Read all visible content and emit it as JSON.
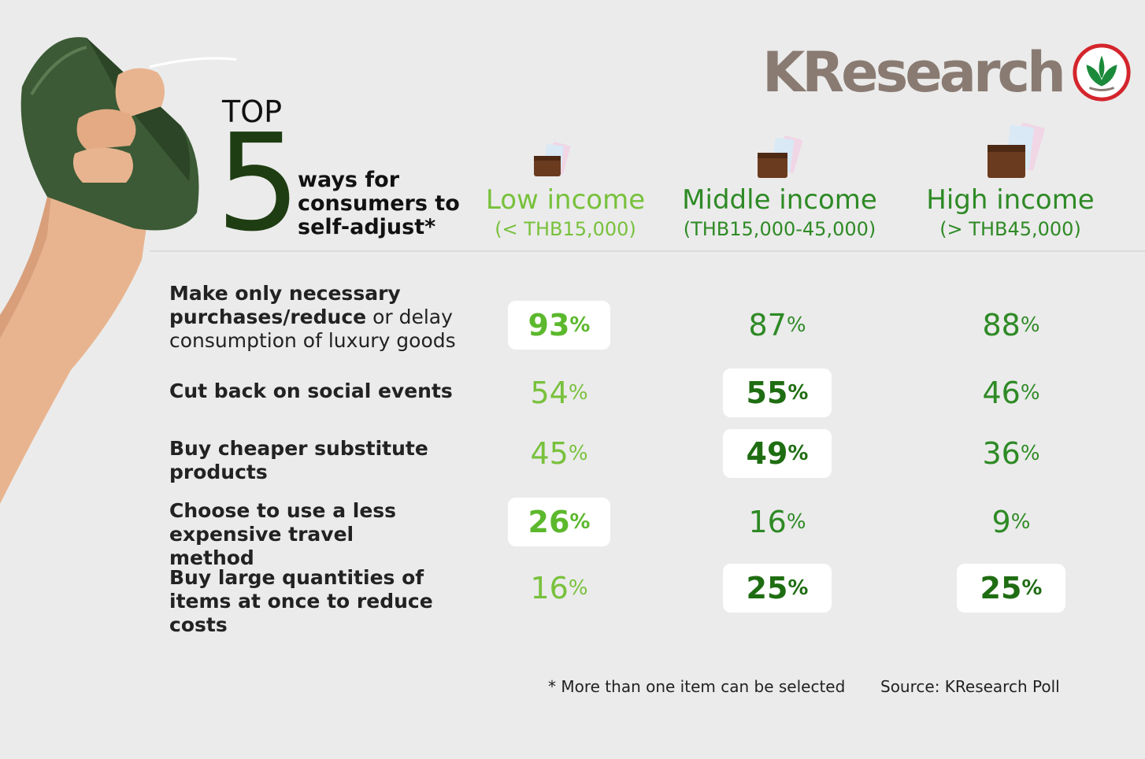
{
  "logo": {
    "text": "KResearch",
    "mark": "kasikorn-leaf-icon"
  },
  "title": {
    "top": "TOP",
    "number": "5",
    "line1": "ways for",
    "line2": "consumers to",
    "line3": "self-adjust*"
  },
  "chart_data": {
    "type": "table",
    "columns": [
      {
        "name": "Low income",
        "range": "(< THB15,000)",
        "icon": "wallet-money-icon"
      },
      {
        "name": "Middle income",
        "range": "(THB15,000-45,000)",
        "icon": "wallet-money-icon"
      },
      {
        "name": "High income",
        "range": "(> THB45,000)",
        "icon": "wallet-money-icon"
      }
    ],
    "rows": [
      {
        "label_bold": "Make only necessary purchases/reduce",
        "label_regular": " or delay consumption of luxury goods",
        "values": [
          93,
          87,
          88
        ],
        "highlighted": [
          true,
          false,
          false
        ]
      },
      {
        "label_bold": "Cut back on social events",
        "label_regular": "",
        "values": [
          54,
          55,
          46
        ],
        "highlighted": [
          false,
          true,
          false
        ]
      },
      {
        "label_bold": "Buy cheaper substitute products",
        "label_regular": "",
        "values": [
          45,
          49,
          36
        ],
        "highlighted": [
          false,
          true,
          false
        ]
      },
      {
        "label_bold": "Choose to use a less expensive travel method",
        "label_regular": "",
        "values": [
          26,
          16,
          9
        ],
        "highlighted": [
          true,
          false,
          false
        ]
      },
      {
        "label_bold": "Buy large quantities of items at once to reduce costs",
        "label_regular": "",
        "values": [
          16,
          25,
          25
        ],
        "highlighted": [
          false,
          true,
          true
        ]
      }
    ],
    "unit": "%"
  },
  "footnote": "* More than one item can be selected",
  "source": "Source: KResearch Poll",
  "colors": {
    "low_green": "#78c13c",
    "dark_green": "#2e8a25",
    "logo_brown": "#8a7b72",
    "logo_red": "#d4252c"
  }
}
